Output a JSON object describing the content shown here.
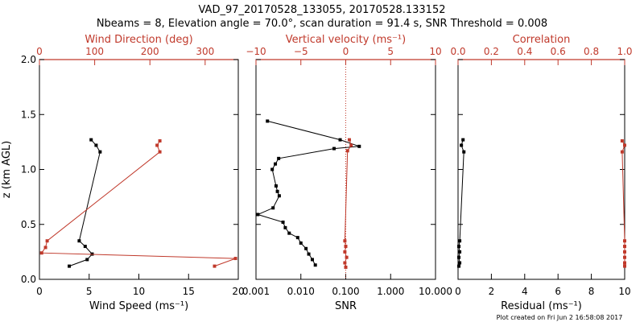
{
  "title_line1": "VAD_97_20170528_133055, 20170528.133152",
  "title_line2": "Nbeams = 8, Elevation angle = 70.0°, scan duration = 91.4 s, SNR Threshold = 0.008",
  "footer": "Plot created on Fri Jun  2 16:58:08 2017",
  "colors": {
    "black": "#000000",
    "red": "#c0392b"
  },
  "chart_data": [
    {
      "type": "line",
      "ylabel": "z (km AGL)",
      "ylim": [
        0,
        2
      ],
      "yticks": [
        "0.0",
        "0.5",
        "1.0",
        "1.5",
        "2.0"
      ],
      "bottom_axis": {
        "label": "Wind Speed (ms⁻¹)",
        "range": [
          0,
          20
        ],
        "ticks": [
          "0",
          "5",
          "10",
          "15",
          "20"
        ]
      },
      "top_axis": {
        "label": "Wind Direction (deg)",
        "range": [
          0,
          360
        ],
        "ticks": [
          "0",
          "100",
          "200",
          "300"
        ]
      },
      "series": [
        {
          "axis": "bottom",
          "color": "black",
          "points": [
            [
              5.2,
              1.27
            ],
            [
              5.7,
              1.22
            ],
            [
              6.1,
              1.16
            ],
            [
              4.0,
              0.35
            ],
            [
              4.6,
              0.3
            ],
            [
              5.3,
              0.23
            ],
            [
              4.8,
              0.18
            ],
            [
              3.0,
              0.12
            ]
          ]
        },
        {
          "axis": "top",
          "color": "red",
          "points": [
            [
              218,
              1.26
            ],
            [
              213,
              1.22
            ],
            [
              218,
              1.16
            ],
            [
              14,
              0.35
            ],
            [
              11,
              0.29
            ],
            [
              4,
              0.24
            ],
            [
              355,
              0.19
            ],
            [
              317,
              0.12
            ]
          ]
        }
      ]
    },
    {
      "type": "line",
      "log_x": true,
      "ylim": [
        0,
        2
      ],
      "bottom_axis": {
        "label": "SNR",
        "range": [
          0.001,
          10
        ],
        "ticks": [
          "0.001",
          "0.010",
          "0.100",
          "1.000",
          "10.000"
        ]
      },
      "top_axis": {
        "label": "Vertical velocity (ms⁻¹)",
        "range": [
          -10,
          10
        ],
        "ticks": [
          "−10",
          "−5",
          "0",
          "5",
          "10"
        ]
      },
      "reference_line": {
        "axis": "top",
        "value": 0,
        "style": "dotted"
      },
      "series": [
        {
          "axis": "bottom",
          "color": "black",
          "points": [
            [
              0.0018,
              1.44
            ],
            [
              0.075,
              1.27
            ],
            [
              0.2,
              1.21
            ],
            [
              0.055,
              1.19
            ],
            [
              0.0032,
              1.1
            ],
            [
              0.0027,
              1.05
            ],
            [
              0.0023,
              1.0
            ],
            [
              0.0028,
              0.85
            ],
            [
              0.003,
              0.8
            ],
            [
              0.0033,
              0.76
            ],
            [
              0.0024,
              0.65
            ],
            [
              0.0011,
              0.59
            ],
            [
              0.004,
              0.52
            ],
            [
              0.0045,
              0.47
            ],
            [
              0.0055,
              0.42
            ],
            [
              0.0085,
              0.38
            ],
            [
              0.01,
              0.33
            ],
            [
              0.013,
              0.28
            ],
            [
              0.015,
              0.23
            ],
            [
              0.018,
              0.18
            ],
            [
              0.021,
              0.13
            ]
          ]
        },
        {
          "axis": "top",
          "color": "red",
          "points": [
            [
              0.4,
              1.27
            ],
            [
              0.6,
              1.22
            ],
            [
              0.2,
              1.17
            ],
            [
              -0.1,
              0.35
            ],
            [
              0.0,
              0.3
            ],
            [
              -0.1,
              0.25
            ],
            [
              0.1,
              0.2
            ],
            [
              -0.1,
              0.15
            ],
            [
              0.0,
              0.11
            ]
          ]
        }
      ]
    },
    {
      "type": "line",
      "ylim": [
        0,
        2
      ],
      "bottom_axis": {
        "label": "Residual (ms⁻¹)",
        "range": [
          0,
          10
        ],
        "ticks": [
          "0",
          "2",
          "4",
          "6",
          "8",
          "10"
        ]
      },
      "top_axis": {
        "label": "Correlation",
        "range": [
          0,
          1
        ],
        "ticks": [
          "0.0",
          "0.2",
          "0.4",
          "0.6",
          "0.8",
          "1.0"
        ]
      },
      "series": [
        {
          "axis": "bottom",
          "color": "black",
          "points": [
            [
              0.3,
              1.27
            ],
            [
              0.2,
              1.22
            ],
            [
              0.35,
              1.16
            ],
            [
              0.1,
              0.35
            ],
            [
              0.05,
              0.3
            ],
            [
              0.1,
              0.25
            ],
            [
              0.05,
              0.2
            ],
            [
              0.1,
              0.15
            ],
            [
              0.05,
              0.12
            ]
          ]
        },
        {
          "axis": "top",
          "color": "red",
          "points": [
            [
              0.985,
              1.26
            ],
            [
              1.0,
              1.22
            ],
            [
              0.985,
              1.16
            ],
            [
              1.0,
              0.35
            ],
            [
              1.0,
              0.3
            ],
            [
              1.0,
              0.25
            ],
            [
              1.0,
              0.2
            ],
            [
              1.0,
              0.15
            ],
            [
              1.0,
              0.12
            ]
          ]
        }
      ]
    }
  ]
}
